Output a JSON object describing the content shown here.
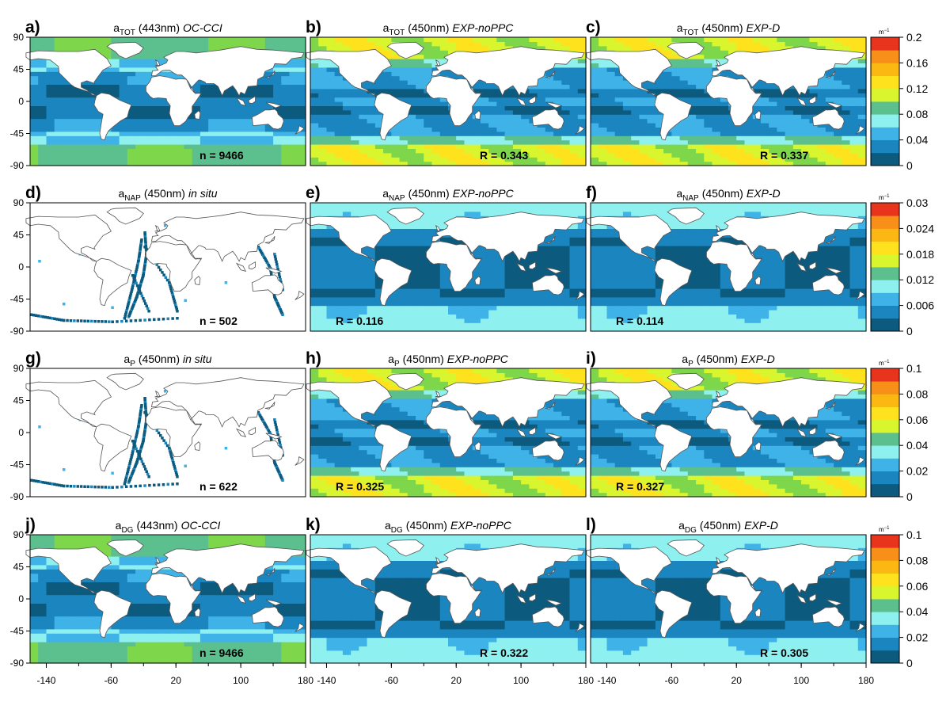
{
  "chart_data": {
    "type": "heatmap",
    "layout": "4 rows x 3 columns of global maps with one colour bar per row",
    "x_axis": {
      "ticks": [
        -140,
        -60,
        20,
        100,
        180
      ],
      "xlim": [
        -180,
        180
      ]
    },
    "y_axis": {
      "ticks": [
        90,
        45,
        0,
        -45,
        -90
      ],
      "ylim": [
        -90,
        90
      ]
    },
    "colorbar_unit_base": "m",
    "colorbar_unit_exp": "−1",
    "palette": [
      "#0c5a7e",
      "#1a85bf",
      "#3fb3e8",
      "#8ff0f0",
      "#5cc08e",
      "#7ed64a",
      "#d9f52e",
      "#fde21d",
      "#fbb812",
      "#f78f18",
      "#f2603b",
      "#e8341c",
      "#d81f12"
    ],
    "colorbars": [
      {
        "labels": [
          "0.2",
          "0.16",
          "0.12",
          "0.08",
          "0.04",
          "0"
        ],
        "range": [
          0,
          0.2
        ]
      },
      {
        "labels": [
          "0.03",
          "0.024",
          "0.018",
          "0.012",
          "0.006",
          "0"
        ],
        "range": [
          0,
          0.03
        ]
      },
      {
        "labels": [
          "0.1",
          "0.08",
          "0.06",
          "0.04",
          "0.02",
          "0"
        ],
        "range": [
          0,
          0.1
        ]
      },
      {
        "labels": [
          "0.1",
          "0.08",
          "0.06",
          "0.04",
          "0.02",
          "0"
        ],
        "range": [
          0,
          0.1
        ]
      }
    ],
    "panels": [
      {
        "letter": "a)",
        "var": "a",
        "sub": "TOT",
        "wl": "(443nm)",
        "src": "OC-CCI",
        "stat": "n = 9466",
        "stat_pos": "bottom-right",
        "kind": "obs"
      },
      {
        "letter": "b)",
        "var": "a",
        "sub": "TOT",
        "wl": "(450nm)",
        "src": "EXP-noPPC",
        "stat": "R =  0.343",
        "stat_pos": "bottom-right",
        "kind": "model"
      },
      {
        "letter": "c)",
        "var": "a",
        "sub": "TOT",
        "wl": "(450nm)",
        "src": "EXP-D",
        "stat": "R =  0.337",
        "stat_pos": "bottom-right",
        "kind": "model"
      },
      {
        "letter": "d)",
        "var": "a",
        "sub": "NAP",
        "wl": "(450nm)",
        "src": "in situ",
        "stat": "n = 502",
        "stat_pos": "bottom-right",
        "kind": "insitu"
      },
      {
        "letter": "e)",
        "var": "a",
        "sub": "NAP",
        "wl": "(450nm)",
        "src": "EXP-noPPC",
        "stat": "R =  0.116",
        "stat_pos": "bottom-left",
        "kind": "model-dark"
      },
      {
        "letter": "f)",
        "var": "a",
        "sub": "NAP",
        "wl": "(450nm)",
        "src": "EXP-D",
        "stat": "R =  0.114",
        "stat_pos": "bottom-left",
        "kind": "model-dark"
      },
      {
        "letter": "g)",
        "var": "a",
        "sub": "P",
        "wl": "(450nm)",
        "src": "in situ",
        "stat": "n = 622",
        "stat_pos": "bottom-right",
        "kind": "insitu"
      },
      {
        "letter": "h)",
        "var": "a",
        "sub": "P",
        "wl": "(450nm)",
        "src": "EXP-noPPC",
        "stat": "R =  0.325",
        "stat_pos": "bottom-left",
        "kind": "model"
      },
      {
        "letter": "i)",
        "var": "a",
        "sub": "P",
        "wl": "(450nm)",
        "src": "EXP-D",
        "stat": "R =  0.327",
        "stat_pos": "bottom-left",
        "kind": "model"
      },
      {
        "letter": "j)",
        "var": "a",
        "sub": "DG",
        "wl": "(443nm)",
        "src": "OC-CCI",
        "stat": "n = 9466",
        "stat_pos": "bottom-right",
        "kind": "obs"
      },
      {
        "letter": "k)",
        "var": "a",
        "sub": "DG",
        "wl": "(450nm)",
        "src": "EXP-noPPC",
        "stat": "R =  0.322",
        "stat_pos": "bottom-right",
        "kind": "model-dark"
      },
      {
        "letter": "l)",
        "var": "a",
        "sub": "DG",
        "wl": "(450nm)",
        "src": "EXP-D",
        "stat": "R =  0.305",
        "stat_pos": "bottom-right",
        "kind": "model-dark"
      }
    ]
  }
}
